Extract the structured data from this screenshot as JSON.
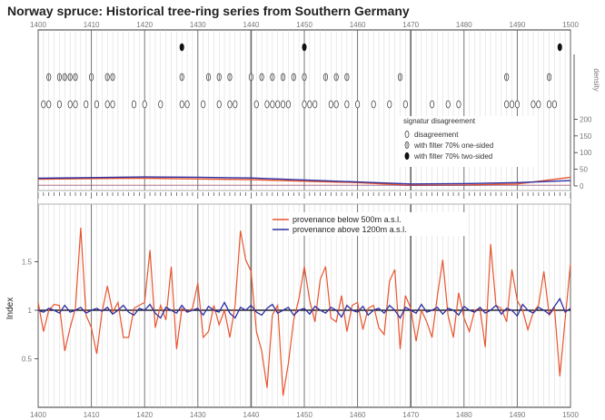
{
  "title": "Norway spruce: Historical tree-ring series from Southern Germany",
  "colors": {
    "red": "#e8552e",
    "blue": "#2c2fa3",
    "axis": "#333333",
    "decade": "#666666",
    "grid_year": "#cccccc"
  },
  "chart_data": [
    {
      "type": "line",
      "panel": "signature-density",
      "xlim": [
        1400,
        1500
      ],
      "x_ticks": [
        "1400",
        "1410",
        "1420",
        "1430",
        "1440",
        "1450",
        "1460",
        "1470",
        "1480",
        "1490",
        "1500"
      ],
      "ylabel": "density",
      "ylim": [
        0,
        250
      ],
      "y_ticks": [
        "0",
        "50",
        "100",
        "150",
        "200"
      ],
      "signatures": {
        "legend_title": "signatur disagreement",
        "legend_items": [
          {
            "symbol": "open",
            "label": "disagreement"
          },
          {
            "symbol": "half",
            "label": "with filter 70% one-sided"
          },
          {
            "symbol": "filled",
            "label": "with filter 70% two-sided"
          }
        ],
        "row1_filled": [
          1427,
          1450,
          1498
        ],
        "row2_half": [
          1402,
          1404,
          1405,
          1406,
          1407,
          1410,
          1413,
          1414,
          1427,
          1432,
          1434,
          1436,
          1440,
          1442,
          1444,
          1446,
          1448,
          1450,
          1454,
          1456,
          1458,
          1468,
          1488,
          1496
        ],
        "row3_open": [
          1401,
          1402,
          1404,
          1406,
          1407,
          1409,
          1411,
          1413,
          1414,
          1418,
          1420,
          1423,
          1427,
          1428,
          1431,
          1434,
          1436,
          1437,
          1441,
          1443,
          1444,
          1445,
          1446,
          1447,
          1450,
          1451,
          1452,
          1455,
          1456,
          1458,
          1460,
          1463,
          1466,
          1469,
          1474,
          1477,
          1479,
          1488,
          1489,
          1490,
          1493,
          1494,
          1496,
          1497
        ]
      },
      "series": [
        {
          "color": "red",
          "x": [
            1400,
            1410,
            1420,
            1430,
            1440,
            1450,
            1460,
            1470,
            1480,
            1490,
            1500
          ],
          "values": [
            20,
            22,
            23,
            21,
            19,
            14,
            10,
            2,
            3,
            6,
            26
          ]
        },
        {
          "color": "blue",
          "x": [
            1400,
            1410,
            1420,
            1430,
            1440,
            1450,
            1460,
            1470,
            1480,
            1490,
            1500
          ],
          "values": [
            23,
            25,
            27,
            26,
            24,
            18,
            12,
            6,
            7,
            10,
            16
          ]
        }
      ]
    },
    {
      "type": "line",
      "panel": "index",
      "title": "",
      "xlabel": "",
      "ylabel": "Index",
      "xlim": [
        1400,
        1500
      ],
      "ylim": [
        0,
        2
      ],
      "x_ticks": [
        "1400",
        "1410",
        "1420",
        "1430",
        "1440",
        "1450",
        "1460",
        "1470",
        "1480",
        "1490",
        "1500"
      ],
      "y_ticks": [
        "0.5",
        "1",
        "1.5"
      ],
      "legend": {
        "position": "top-center"
      },
      "series": [
        {
          "name": "provenance below 500m a.s.l.",
          "color": "red",
          "x_start": 1400,
          "values": [
            1.08,
            0.78,
            1.0,
            1.06,
            1.05,
            0.58,
            0.82,
            1.02,
            1.85,
            0.95,
            0.82,
            0.55,
            0.98,
            1.25,
            0.98,
            1.08,
            0.72,
            0.72,
            1.02,
            1.05,
            1.08,
            1.62,
            0.82,
            1.05,
            0.9,
            1.45,
            0.6,
            1.02,
            0.98,
            1.02,
            1.28,
            0.72,
            0.78,
            1.05,
            0.85,
            1.0,
            0.72,
            1.05,
            1.82,
            1.52,
            1.4,
            0.78,
            0.58,
            0.2,
            0.95,
            1.05,
            0.12,
            0.45,
            0.9,
            1.12,
            1.45,
            1.1,
            0.88,
            1.32,
            1.45,
            0.92,
            0.88,
            1.15,
            0.78,
            1.05,
            1.08,
            0.8,
            1.02,
            1.05,
            0.82,
            0.75,
            1.3,
            1.42,
            0.6,
            1.15,
            1.02,
            0.68,
            1.0,
            0.88,
            0.72,
            1.15,
            1.52,
            0.95,
            0.72,
            1.18,
            0.92,
            0.78,
            1.0,
            1.02,
            0.62,
            1.68,
            1.05,
            1.02,
            0.88,
            1.42,
            1.1,
            1.0,
            0.8,
            0.98,
            1.05,
            1.4,
            0.95,
            1.02,
            0.32,
            0.9,
            1.48
          ]
        },
        {
          "name": "provenance above 1200m a.s.l.",
          "color": "blue",
          "x_start": 1400,
          "values": [
            1.0,
            0.98,
            1.02,
            1.0,
            0.97,
            1.05,
            0.98,
            1.0,
            1.03,
            0.97,
            1.0,
            1.02,
            0.99,
            1.03,
            0.96,
            1.0,
            1.05,
            0.98,
            0.95,
            1.02,
            1.0,
            1.06,
            0.97,
            0.92,
            1.03,
            1.0,
            0.97,
            1.05,
            0.98,
            1.0,
            1.02,
            0.95,
            1.04,
            1.0,
            0.98,
            1.08,
            0.97,
            0.92,
            1.03,
            1.0,
            1.05,
            0.98,
            0.95,
            1.02,
            1.06,
            0.97,
            1.0,
            1.03,
            0.95,
            1.0,
            1.02,
            0.96,
            1.04,
            1.0,
            0.97,
            1.03,
            1.0,
            0.93,
            1.05,
            1.0,
            0.98,
            1.04,
            0.95,
            1.0,
            1.02,
            0.97,
            1.05,
            1.0,
            0.92,
            1.03,
            1.0,
            0.97,
            1.06,
            0.98,
            1.0,
            1.03,
            0.96,
            1.02,
            1.0,
            0.95,
            1.04,
            1.0,
            0.98,
            1.03,
            0.97,
            1.0,
            1.05,
            0.96,
            1.02,
            1.0,
            0.94,
            1.06,
            1.0,
            0.97,
            1.03,
            1.0,
            0.96,
            1.04,
            1.12,
            0.98,
            1.02
          ]
        }
      ]
    }
  ]
}
